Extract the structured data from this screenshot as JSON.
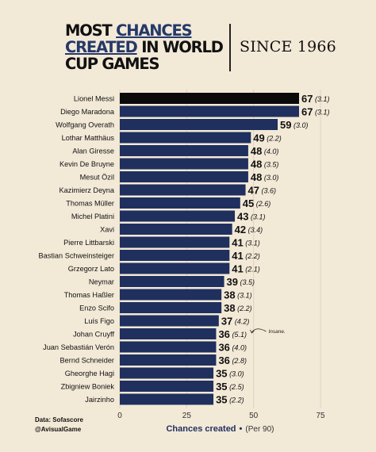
{
  "title": {
    "line1_a": "MOST ",
    "line1_b": "CHANCES",
    "line2_a": "CREATED",
    "line2_b": " IN WORLD",
    "line3": "CUP GAMES"
  },
  "subtitle": "SINCE 1966",
  "source": {
    "data": "Data: Sofascore",
    "handle": "@AvisualGame"
  },
  "colors": {
    "highlight_bar": "#0a0a0a",
    "bar": "#1f2f5e",
    "background": "#f3e9d7",
    "title_accent": "#24396a"
  },
  "chart_data": {
    "type": "bar",
    "orientation": "horizontal",
    "xlabel": "Chances created",
    "xlabel_sub": "(Per 90)",
    "xlim": [
      0,
      75
    ],
    "xticks": [
      0,
      25,
      50,
      75
    ],
    "categories": [
      "Lionel Messi",
      "Diego Maradona",
      "Wolfgang Overath",
      "Lothar Matthäus",
      "Alan Giresse",
      "Kevin De Bruyne",
      "Mesut Özil",
      "Kazimierz Deyna",
      "Thomas Müller",
      "Michel Platini",
      "Xavi",
      "Pierre Littbarski",
      "Bastian Schweinsteiger",
      "Grzegorz Lato",
      "Neymar",
      "Thomas Haßler",
      "Enzo Scifo",
      "Luís Figo",
      "Johan Cruyff",
      "Juan Sebastián Verón",
      "Bernd Schneider",
      "Gheorghe Hagi",
      "Zbigniew Boniek",
      "Jairzinho"
    ],
    "values": [
      67,
      67,
      59,
      49,
      48,
      48,
      48,
      47,
      45,
      43,
      42,
      41,
      41,
      41,
      39,
      38,
      38,
      37,
      36,
      36,
      36,
      35,
      35,
      35
    ],
    "per90_labels": [
      "(3.1)",
      "(3.1)",
      "(3.0)",
      "(2.2)",
      "(4.0)",
      "(3.5)",
      "(3.0)",
      "(3.6)",
      "(2.6)",
      "(3.1)",
      "(3.4)",
      "(3.1)",
      "(2.2)",
      "(2.1)",
      "(3.5)",
      "(3.1)",
      "(2.2)",
      "(4.2)",
      "(5.1)",
      "(4.0)",
      "(2.8)",
      "(3.0)",
      "(2.5)",
      "(2.2)"
    ],
    "highlight": "Lionel Messi",
    "annotation": {
      "target": "Johan Cruyff",
      "text": "Insane."
    }
  }
}
